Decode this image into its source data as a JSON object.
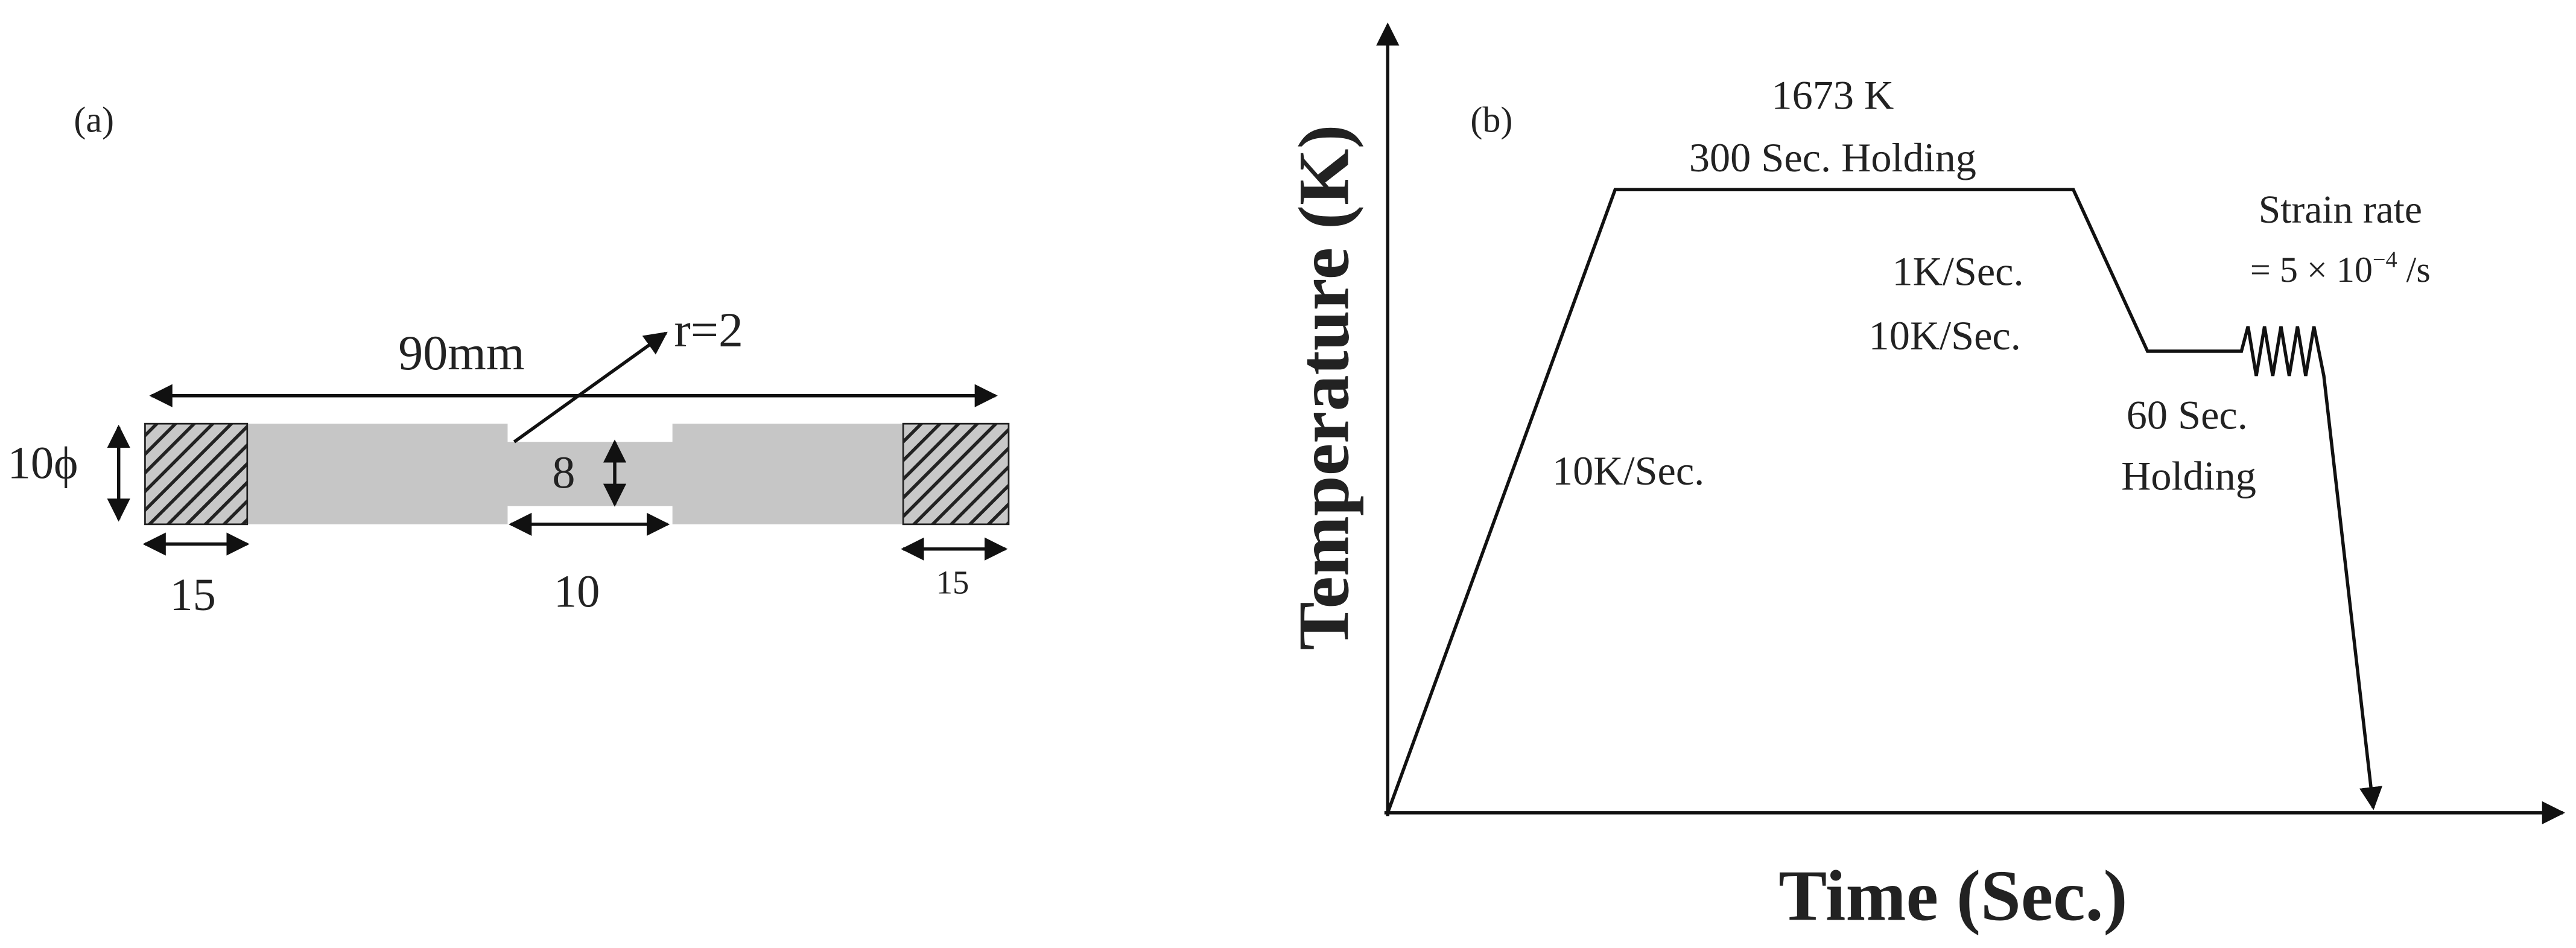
{
  "panel_a": {
    "label": "(a)",
    "overall_length": "90mm",
    "radius": "r=2",
    "diameter": "10ϕ",
    "gauge_diameter": "8",
    "left_grip": "15",
    "gauge_length": "10",
    "right_grip": "15"
  },
  "panel_b": {
    "label": "(b)",
    "y_axis_label": "Temperature (K)",
    "x_axis_label": "Time (Sec.)",
    "hold_temperature": "1673 K",
    "hold_time": "300 Sec. Holding",
    "cooling_rate_1": "1K/Sec.",
    "cooling_rate_2": "10K/Sec.",
    "heating_rate": "10K/Sec.",
    "second_hold_time": "60 Sec.",
    "second_hold_word": "Holding",
    "strain_rate_title": "Strain rate",
    "strain_rate_base": "= 5 × 10",
    "strain_rate_exponent": "−4",
    "strain_rate_unit": " /s"
  }
}
